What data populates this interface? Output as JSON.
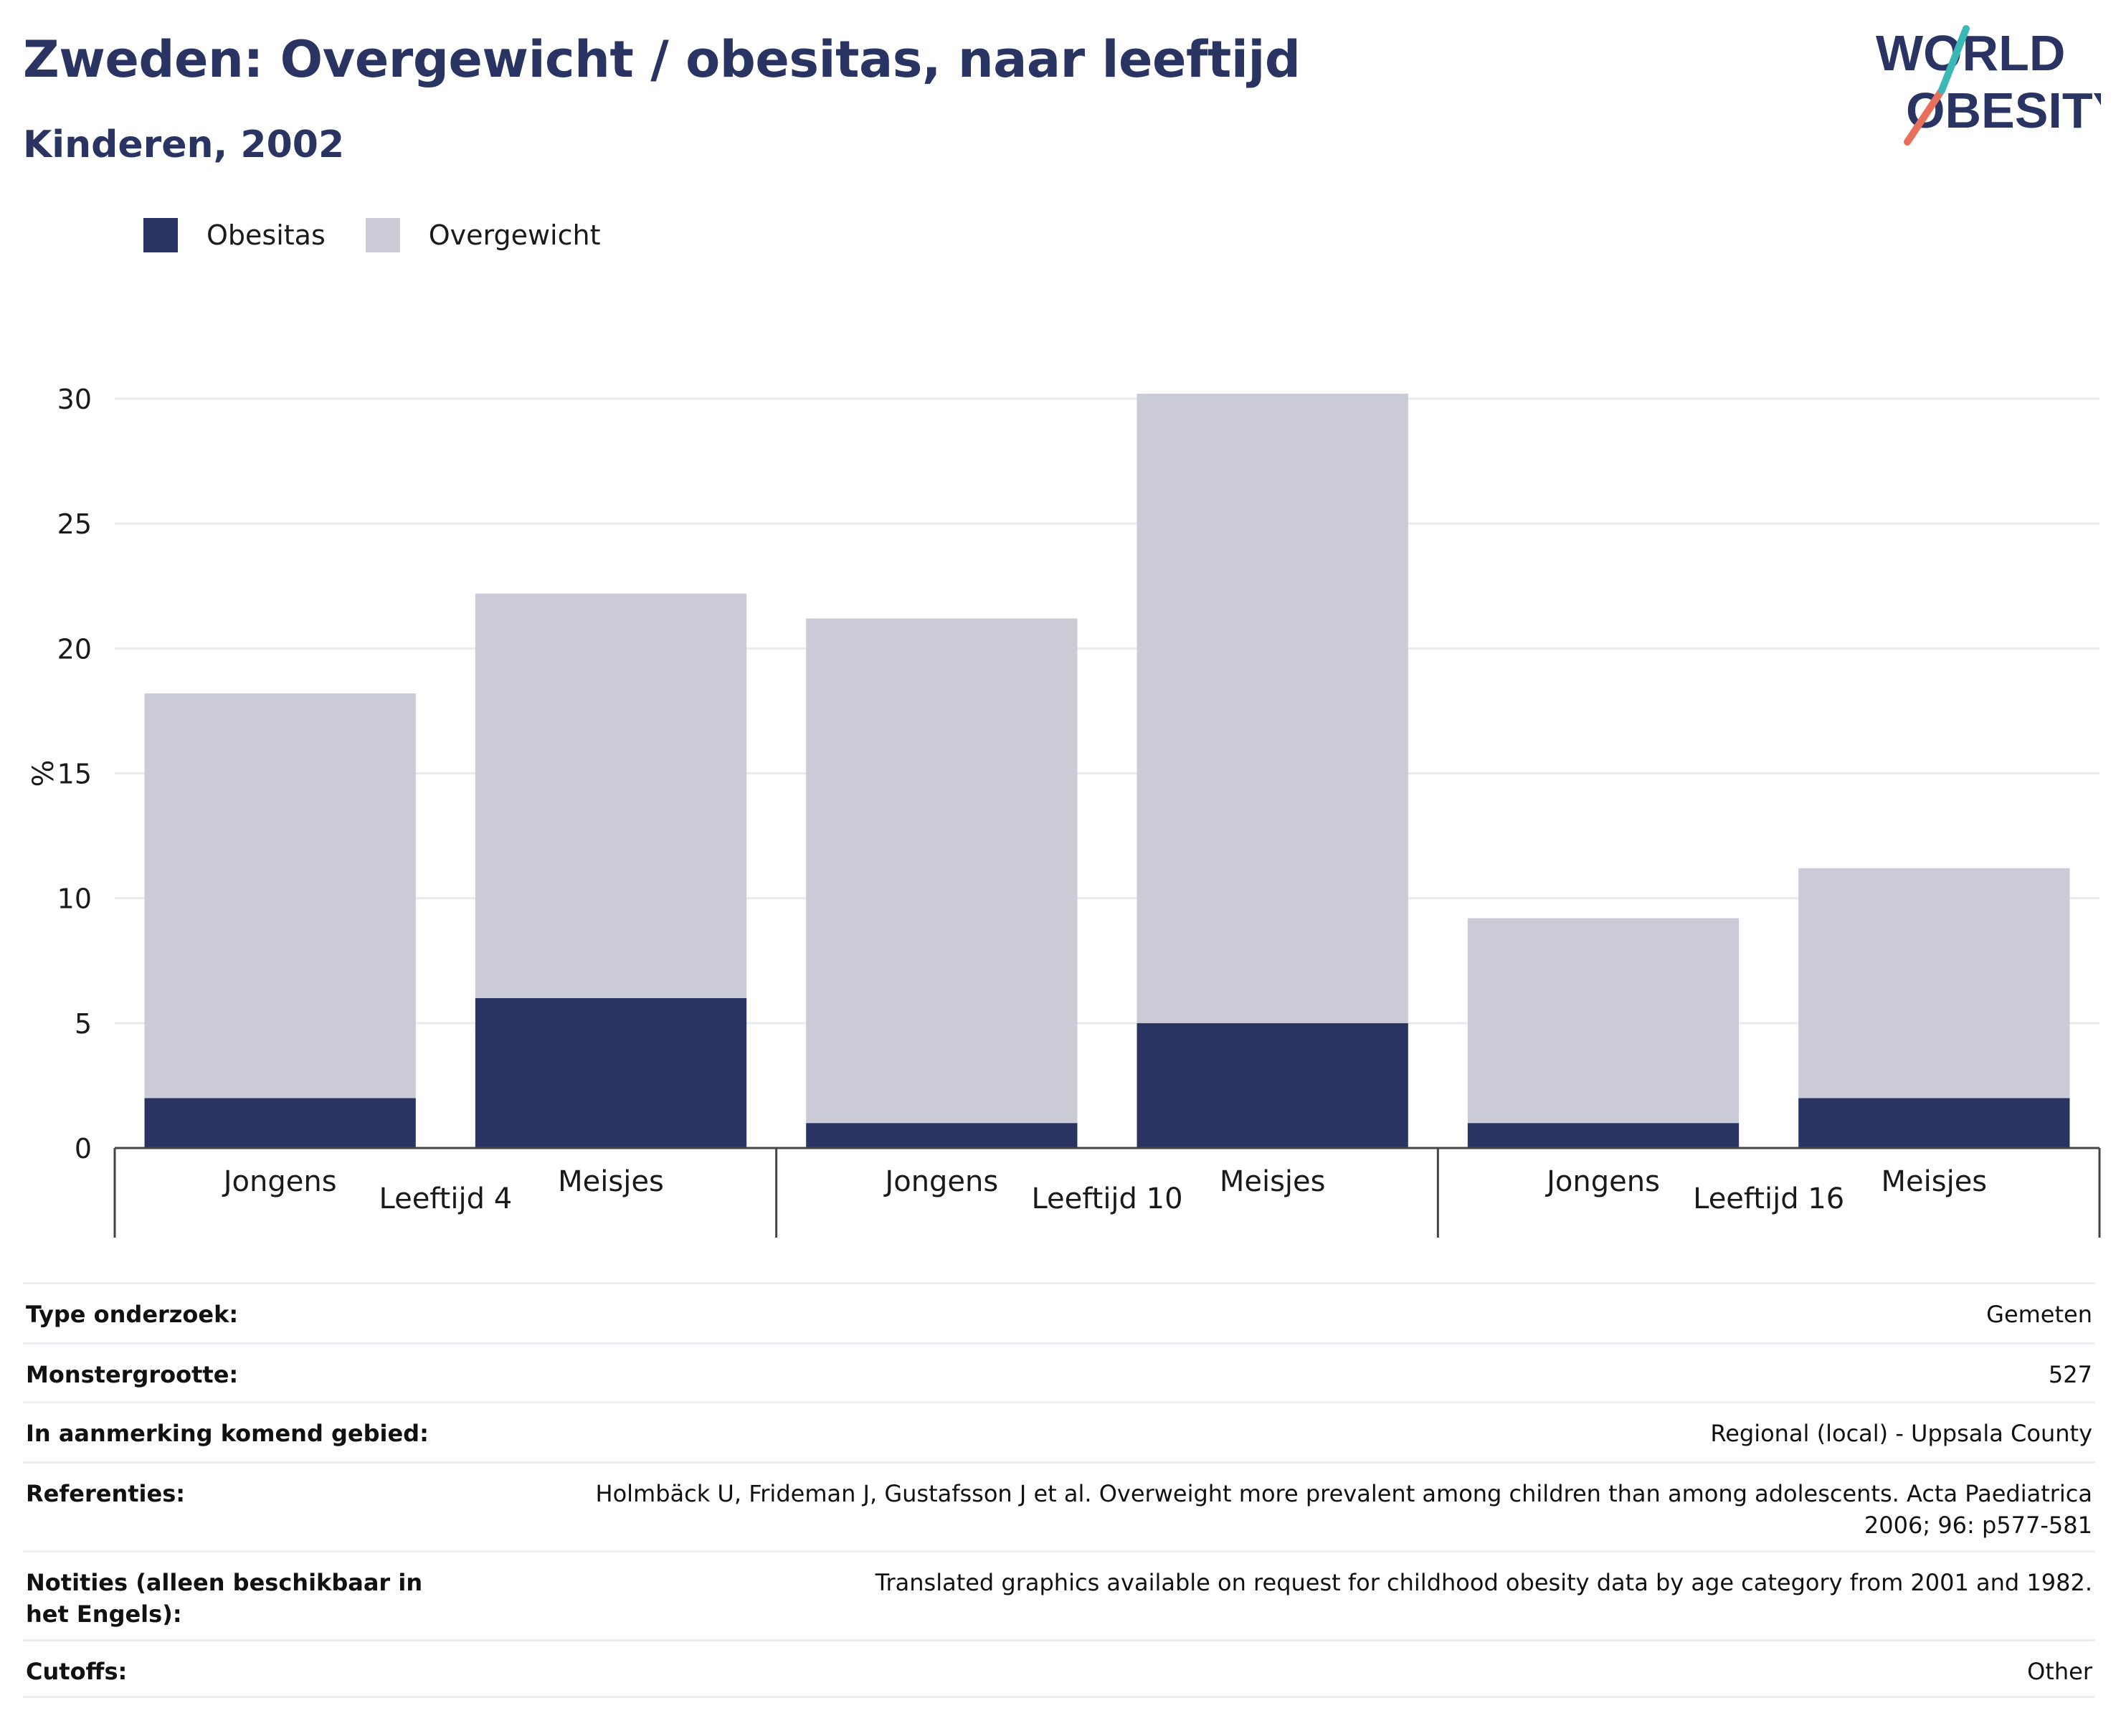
{
  "header": {
    "title": "Zweden: Overgewicht / obesitas, naar leeftijd",
    "subtitle": "Kinderen, 2002"
  },
  "logo": {
    "line1": "WORLD",
    "line2": "OBESITY"
  },
  "legend": [
    {
      "label": "Obesitas",
      "color": "#293462"
    },
    {
      "label": "Overgewicht",
      "color": "#cacbd7"
    }
  ],
  "chart_data": {
    "type": "bar",
    "stacked": true,
    "ylabel": "%",
    "ylim": [
      0,
      30
    ],
    "yticks": [
      0,
      5,
      10,
      15,
      20,
      25,
      30
    ],
    "grid": true,
    "legend_position": "top-left",
    "categories": [
      "Jongens",
      "Meisjes",
      "Jongens",
      "Meisjes",
      "Jongens",
      "Meisjes"
    ],
    "groups": [
      {
        "label": "Leeftijd 4",
        "span": [
          0,
          1
        ]
      },
      {
        "label": "Leeftijd 10",
        "span": [
          2,
          3
        ]
      },
      {
        "label": "Leeftijd 16",
        "span": [
          4,
          5
        ]
      }
    ],
    "series": [
      {
        "name": "Obesitas",
        "color": "#293462",
        "values": [
          2,
          6,
          1,
          5,
          1,
          2
        ]
      },
      {
        "name": "Overgewicht",
        "color": "#cacbd7",
        "values": [
          16.2,
          16.2,
          20.2,
          25.2,
          8.2,
          9.2
        ]
      }
    ]
  },
  "info": [
    {
      "key": "Type onderzoek:",
      "value": "Gemeten"
    },
    {
      "key": "Monstergrootte:",
      "value": "527"
    },
    {
      "key": "In aanmerking komend gebied:",
      "value": "Regional (local) - Uppsala County"
    },
    {
      "key": "Referenties:",
      "value": "Holmbäck U, Frideman J, Gustafsson J et al. Overweight more prevalent among children than among adolescents. Acta Paediatrica 2006; 96: p577-581"
    },
    {
      "key": "Notities (alleen beschikbaar in het Engels):",
      "value": "Translated graphics available on request for childhood obesity data by age category from 2001 and 1982."
    },
    {
      "key": "Cutoffs:",
      "value": "Other"
    }
  ]
}
